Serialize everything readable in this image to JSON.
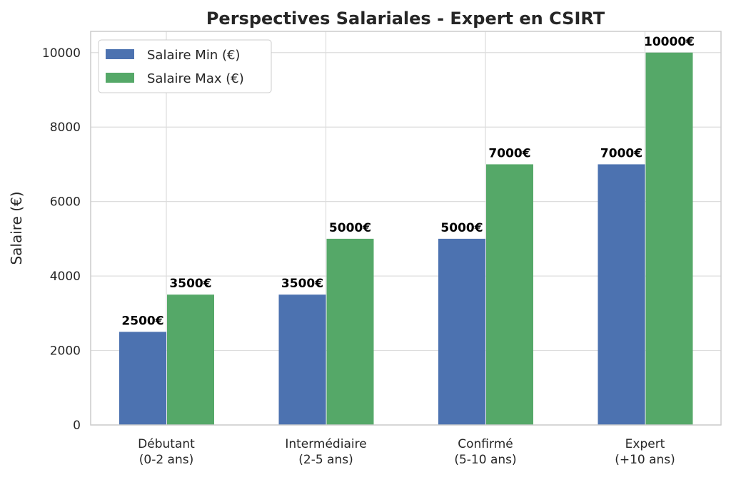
{
  "chart_data": {
    "type": "bar",
    "title": "Perspectives Salariales - Expert en CSIRT",
    "xlabel": "",
    "ylabel": "Salaire (€)",
    "categories": [
      "Débutant\n(0-2 ans)",
      "Intermédiaire\n(2-5 ans)",
      "Confirmé\n(5-10 ans)",
      "Expert\n(+10 ans)"
    ],
    "series": [
      {
        "name": "Salaire Min (€)",
        "color": "#4c72b0",
        "values": [
          2500,
          3500,
          5000,
          7000
        ]
      },
      {
        "name": "Salaire Max (€)",
        "color": "#55a868",
        "values": [
          3500,
          5000,
          7000,
          10000
        ]
      }
    ],
    "value_label_suffix": "€",
    "ylim": [
      0,
      10570
    ],
    "yticks": [
      0,
      2000,
      4000,
      6000,
      8000,
      10000
    ],
    "grid": true,
    "legend_position": "top-left"
  }
}
